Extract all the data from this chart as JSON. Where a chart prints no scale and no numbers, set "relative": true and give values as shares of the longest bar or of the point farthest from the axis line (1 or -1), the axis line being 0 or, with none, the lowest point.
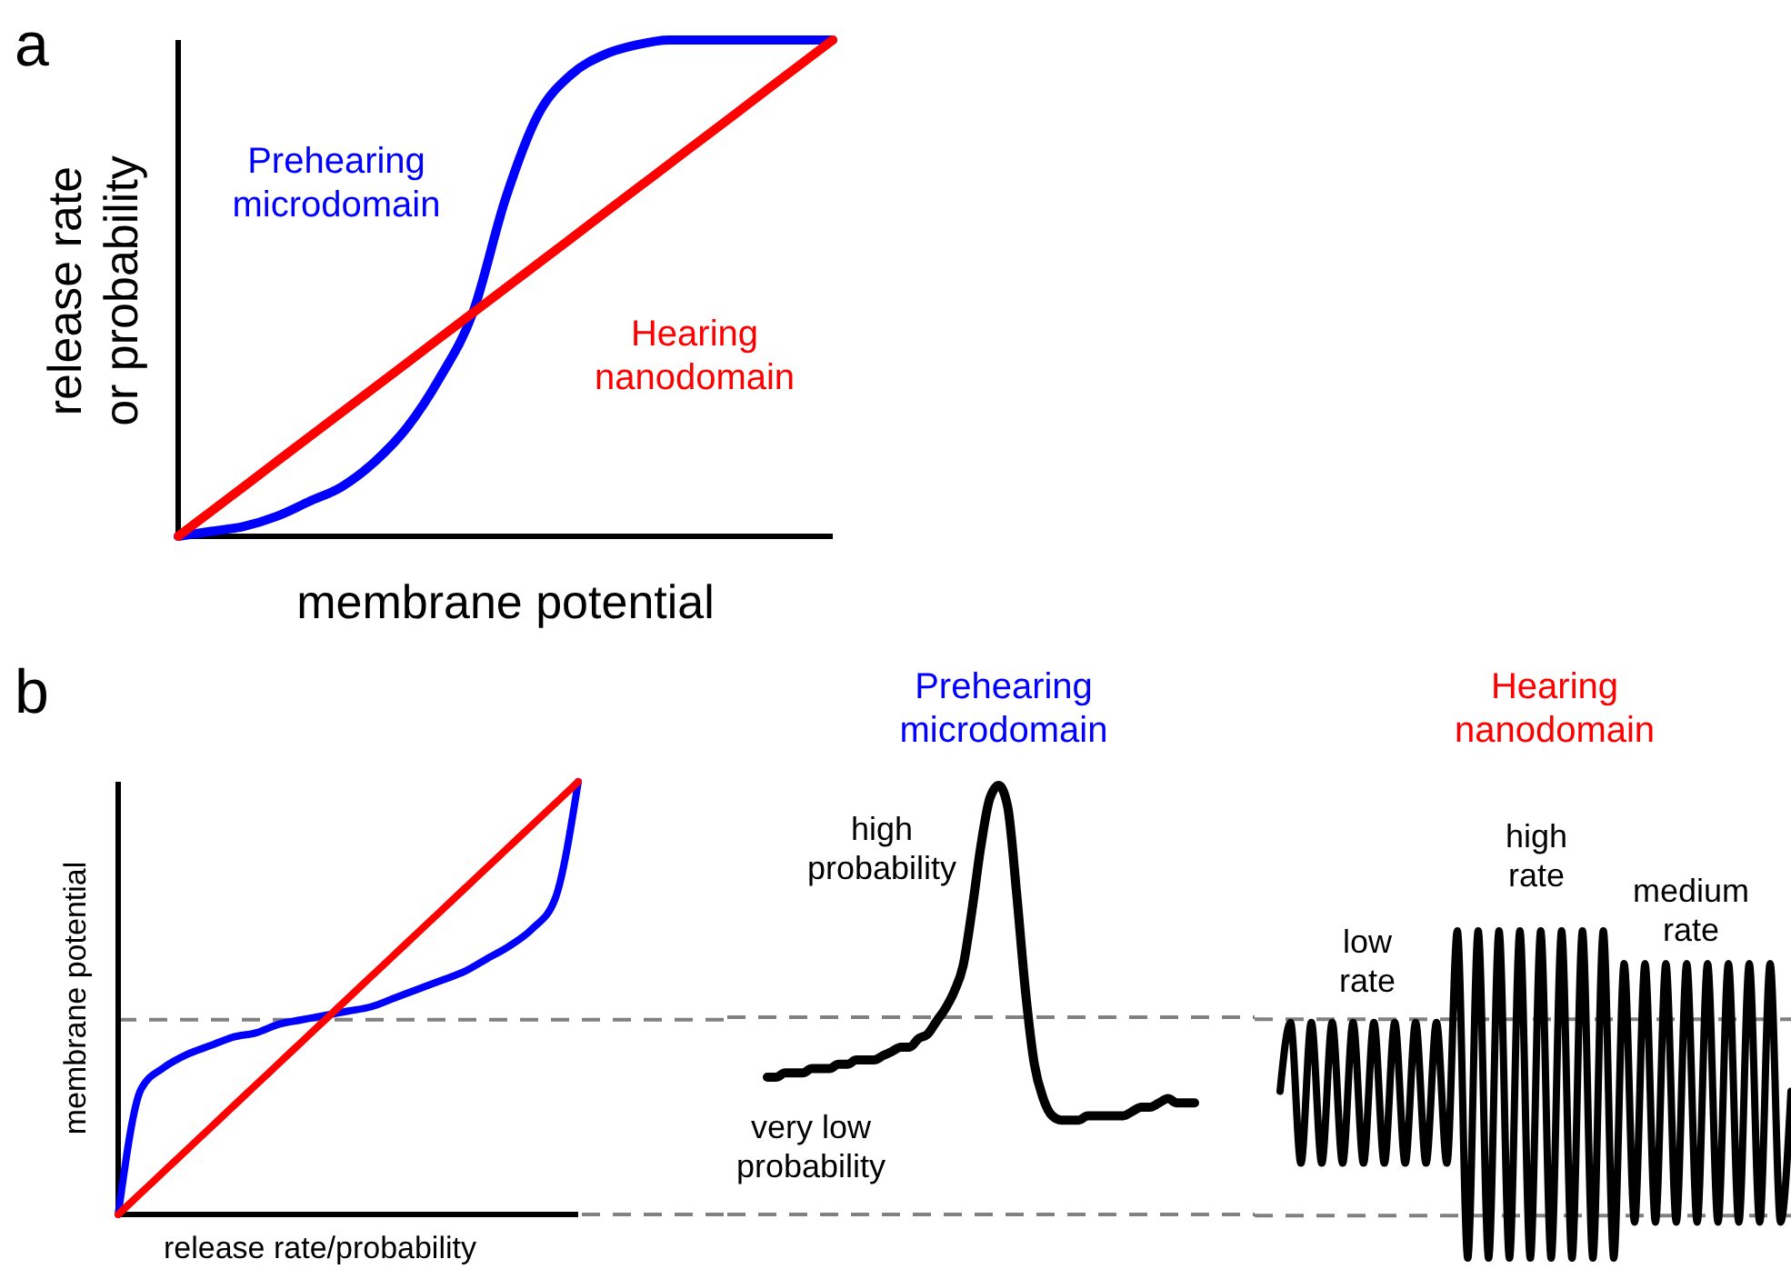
{
  "chart_data": [
    {
      "type": "line",
      "title": "a",
      "xlabel": "membrane potential",
      "ylabel": "release rate or probability",
      "relative": true,
      "categories": [
        null,
        null,
        null,
        null,
        null,
        null,
        null,
        null,
        null,
        null,
        null,
        null,
        null,
        null,
        null,
        null,
        null,
        null,
        null,
        null,
        null
      ],
      "series": [
        {
          "name": "Prehearing microdomain",
          "color": "#0000ff",
          "values": [
            0,
            0.01,
            0.02,
            0.04,
            0.07,
            0.1,
            0.15,
            0.22,
            0.32,
            0.45,
            0.68,
            0.85,
            0.93,
            0.97,
            0.99,
            1,
            1,
            1,
            1,
            1,
            1
          ]
        },
        {
          "name": "Hearing nanodomain",
          "color": "#ff0000",
          "values": [
            0,
            0.05,
            0.1,
            0.15,
            0.2,
            0.25,
            0.3,
            0.35,
            0.4,
            0.45,
            0.5,
            0.55,
            0.6,
            0.65,
            0.7,
            0.75,
            0.8,
            0.85,
            0.9,
            0.95,
            1
          ]
        }
      ]
    },
    {
      "type": "line",
      "title": "b",
      "xlabel": "release rate/probability",
      "ylabel": "membrane potential",
      "relative": true,
      "categories": [
        null,
        null,
        null,
        null,
        null,
        null,
        null,
        null,
        null,
        null,
        null,
        null,
        null,
        null,
        null,
        null,
        null,
        null,
        null,
        null,
        null
      ],
      "series": [
        {
          "color": "#0000ff",
          "values": [
            0,
            0.29,
            0.34,
            0.37,
            0.39,
            0.41,
            0.42,
            0.44,
            0.45,
            0.46,
            0.47,
            0.48,
            0.5,
            0.52,
            0.54,
            0.56,
            0.59,
            0.62,
            0.66,
            0.73,
            1
          ]
        },
        {
          "color": "#ff0000",
          "values": [
            0,
            0.05,
            0.1,
            0.15,
            0.2,
            0.25,
            0.3,
            0.35,
            0.4,
            0.45,
            0.5,
            0.55,
            0.6,
            0.65,
            0.7,
            0.75,
            0.8,
            0.85,
            0.9,
            0.95,
            1
          ]
        }
      ],
      "ref_lines": [
        {
          "axis": "y",
          "value": 0.45,
          "color": "#808080",
          "line_style": "dashed"
        },
        {
          "axis": "y",
          "value": 0,
          "color": "#808080",
          "line_style": "dashed"
        }
      ]
    },
    {
      "type": "line",
      "title": "Prehearing microdomain",
      "relative": true,
      "annotations": [
        "high probability",
        "very low probability"
      ],
      "categories": [
        null,
        null,
        null,
        null,
        null,
        null,
        null,
        null,
        null,
        null,
        null,
        null,
        null,
        null,
        null,
        null,
        null,
        null,
        null,
        null,
        null,
        null,
        null,
        null,
        null,
        null,
        null,
        null,
        null,
        null,
        null,
        null,
        null,
        null,
        null,
        null,
        null,
        null,
        null,
        null,
        null,
        null,
        null,
        null,
        null,
        null,
        null,
        null,
        null
      ],
      "series": [
        {
          "color": "#000000",
          "values": [
            0.32,
            0.32,
            0.33,
            0.33,
            0.33,
            0.34,
            0.34,
            0.34,
            0.35,
            0.35,
            0.36,
            0.36,
            0.36,
            0.37,
            0.38,
            0.39,
            0.39,
            0.41,
            0.42,
            0.45,
            0.48,
            0.52,
            0.58,
            0.71,
            0.86,
            0.97,
            1,
            0.95,
            0.75,
            0.52,
            0.35,
            0.27,
            0.23,
            0.22,
            0.22,
            0.22,
            0.23,
            0.23,
            0.23,
            0.23,
            0.23,
            0.24,
            0.25,
            0.25,
            0.26,
            0.27,
            0.26,
            0.26,
            0.26
          ]
        }
      ],
      "ref_lines": [
        {
          "axis": "y",
          "value": 0.46,
          "color": "#808080",
          "line_style": "dashed"
        },
        {
          "axis": "y",
          "value": 0,
          "color": "#808080",
          "line_style": "dashed"
        }
      ]
    },
    {
      "type": "line",
      "title": "Hearing nanodomain",
      "relative": true,
      "annotations": [
        "low rate",
        "high rate",
        "medium rate"
      ],
      "categories": [
        null,
        null,
        null,
        null,
        null,
        null,
        null,
        null,
        null,
        null,
        null,
        null,
        null,
        null,
        null,
        null,
        null,
        null,
        null,
        null,
        null,
        null,
        null,
        null,
        null,
        null,
        null,
        null,
        null,
        null,
        null,
        null,
        null,
        null,
        null,
        null,
        null,
        null,
        null,
        null,
        null,
        null,
        null,
        null,
        null,
        null,
        null,
        null,
        null,
        null
      ],
      "series": [
        {
          "color": "#000000",
          "values": [
            0.51,
            0.72,
            0.29,
            0.72,
            0.29,
            0.72,
            0.29,
            0.72,
            0.29,
            0.72,
            0.29,
            0.72,
            0.29,
            0.72,
            0.29,
            0.72,
            0.29,
            1,
            0,
            1,
            0,
            1,
            0,
            1,
            0,
            1,
            0,
            1,
            0,
            1,
            0,
            1,
            0,
            0.9,
            0.11,
            0.9,
            0.11,
            0.9,
            0.11,
            0.9,
            0.11,
            0.9,
            0.11,
            0.9,
            0.11,
            0.9,
            0.11,
            0.9,
            0.11,
            0.51
          ]
        }
      ],
      "ref_lines": [
        {
          "axis": "y",
          "value": 0.73,
          "color": "#808080",
          "line_style": "dashed"
        },
        {
          "axis": "y",
          "value": 0.13,
          "color": "#808080",
          "line_style": "dashed"
        }
      ]
    }
  ]
}
